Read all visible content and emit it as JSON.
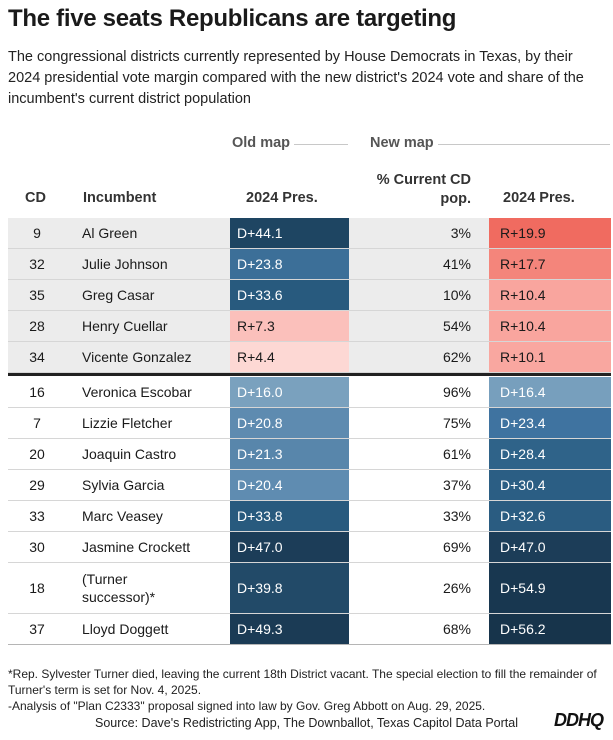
{
  "title": "The five seats Republicans are targeting",
  "subtitle": "The congressional districts currently represented by House Democrats in Texas, by their 2024 presidential vote margin compared with the new district's 2024 vote and share of the incumbent's current district population",
  "column_groups": {
    "old_map": "Old map",
    "new_map": "New map"
  },
  "headers": {
    "cd": "CD",
    "incumbent": "Incumbent",
    "old_pres": "2024 Pres.",
    "share_line1": "% Current CD",
    "share_line2": "pop.",
    "new_pres": "2024 Pres."
  },
  "chart_data": {
    "type": "table",
    "title": "The five seats Republicans are targeting",
    "columns": [
      "CD",
      "Incumbent",
      "Old map 2024 Pres.",
      "% Current CD pop.",
      "New map 2024 Pres."
    ],
    "rows": [
      {
        "cd": "9",
        "incumbent": "Al Green",
        "old": "D+44.1",
        "share": "3%",
        "new": "R+19.9",
        "old_color": "#1e4562",
        "new_color": "#f06b60",
        "old_text": "#ffffff",
        "new_text": "#1a1a1a",
        "targeted": true
      },
      {
        "cd": "32",
        "incumbent": "Julie Johnson",
        "old": "D+23.8",
        "share": "41%",
        "new": "R+17.7",
        "old_color": "#3c6f98",
        "new_color": "#f4857b",
        "old_text": "#ffffff",
        "new_text": "#1a1a1a",
        "targeted": true
      },
      {
        "cd": "35",
        "incumbent": "Greg Casar",
        "old": "D+33.6",
        "share": "10%",
        "new": "R+10.4",
        "old_color": "#285a7e",
        "new_color": "#f9a59e",
        "old_text": "#ffffff",
        "new_text": "#1a1a1a",
        "targeted": true
      },
      {
        "cd": "28",
        "incumbent": "Henry Cuellar",
        "old": "R+7.3",
        "share": "54%",
        "new": "R+10.4",
        "old_color": "#fbc0bb",
        "new_color": "#f9a59e",
        "old_text": "#1a1a1a",
        "new_text": "#1a1a1a",
        "targeted": true
      },
      {
        "cd": "34",
        "incumbent": "Vicente Gonzalez",
        "old": "R+4.4",
        "share": "62%",
        "new": "R+10.1",
        "old_color": "#fdd8d4",
        "new_color": "#f9a7a0",
        "old_text": "#1a1a1a",
        "new_text": "#1a1a1a",
        "targeted": true
      },
      {
        "cd": "16",
        "incumbent": "Veronica Escobar",
        "old": "D+16.0",
        "share": "96%",
        "new": "D+16.4",
        "old_color": "#7aa1be",
        "new_color": "#779fbd",
        "old_text": "#ffffff",
        "new_text": "#ffffff",
        "targeted": false
      },
      {
        "cd": "7",
        "incumbent": "Lizzie Fletcher",
        "old": "D+20.8",
        "share": "75%",
        "new": "D+23.4",
        "old_color": "#5e8bb0",
        "new_color": "#3f73a0",
        "old_text": "#ffffff",
        "new_text": "#ffffff",
        "targeted": false
      },
      {
        "cd": "20",
        "incumbent": "Joaquin Castro",
        "old": "D+21.3",
        "share": "61%",
        "new": "D+28.4",
        "old_color": "#5886ab",
        "new_color": "#2f6389",
        "old_text": "#ffffff",
        "new_text": "#ffffff",
        "targeted": false
      },
      {
        "cd": "29",
        "incumbent": "Sylvia Garcia",
        "old": "D+20.4",
        "share": "37%",
        "new": "D+30.4",
        "old_color": "#5f8cb1",
        "new_color": "#2b5e84",
        "old_text": "#ffffff",
        "new_text": "#ffffff",
        "targeted": false
      },
      {
        "cd": "33",
        "incumbent": "Marc Veasey",
        "old": "D+33.8",
        "share": "33%",
        "new": "D+32.6",
        "old_color": "#285a7e",
        "new_color": "#2a5c81",
        "old_text": "#ffffff",
        "new_text": "#ffffff",
        "targeted": false
      },
      {
        "cd": "30",
        "incumbent": "Jasmine Crockett",
        "old": "D+47.0",
        "share": "69%",
        "new": "D+47.0",
        "old_color": "#1c3d58",
        "new_color": "#1c3d58",
        "old_text": "#ffffff",
        "new_text": "#ffffff",
        "targeted": false
      },
      {
        "cd": "18",
        "incumbent": "(Turner successor)*",
        "old": "D+39.8",
        "share": "26%",
        "new": "D+54.9",
        "old_color": "#224a68",
        "new_color": "#183750",
        "old_text": "#ffffff",
        "new_text": "#ffffff",
        "targeted": false
      },
      {
        "cd": "37",
        "incumbent": "Lloyd Doggett",
        "old": "D+49.3",
        "share": "68%",
        "new": "D+56.2",
        "old_color": "#1b3b55",
        "new_color": "#17344b",
        "old_text": "#ffffff",
        "new_text": "#ffffff",
        "targeted": false
      }
    ]
  },
  "notes": [
    "*Rep. Sylvester Turner died, leaving the current 18th District vacant. The special election to fill the remainder of Turner's term is set for Nov. 4, 2025.",
    "-Analysis of \"Plan C2333\" proposal signed into law by Gov. Greg Abbott on Aug. 29, 2025."
  ],
  "source": "Source: Dave's Redistricting App, The Downballot, Texas Capitol Data Portal",
  "logo": "DDHQ"
}
